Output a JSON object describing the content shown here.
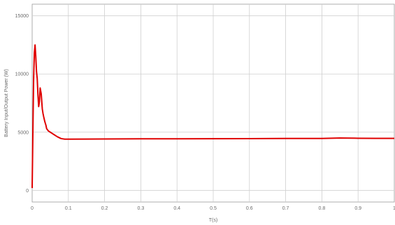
{
  "chart_data": {
    "type": "line",
    "title": "",
    "xlabel": "T(s)",
    "ylabel": "Battery Input/Output Power (W)",
    "xlim": [
      0,
      1
    ],
    "ylim": [
      -1000,
      16000
    ],
    "x_ticks": [
      0,
      0.1,
      0.2,
      0.3,
      0.4,
      0.5,
      0.6,
      0.7,
      0.8,
      0.9,
      1
    ],
    "x_tick_labels": [
      "0",
      "0.1",
      "0.2",
      "0.3",
      "0.4",
      "0.5",
      "0.6",
      "0.7",
      "0.8",
      "0.9",
      "1"
    ],
    "y_ticks": [
      0,
      5000,
      10000,
      15000
    ],
    "y_tick_labels": [
      "0",
      "5000",
      "10000",
      "15000"
    ],
    "grid": true,
    "series": [
      {
        "color": "#e00000",
        "x": [
          0,
          0.002,
          0.004,
          0.006,
          0.008,
          0.01,
          0.012,
          0.014,
          0.016,
          0.018,
          0.02,
          0.022,
          0.025,
          0.028,
          0.03,
          0.032,
          0.035,
          0.038,
          0.04,
          0.045,
          0.05,
          0.055,
          0.06,
          0.065,
          0.07,
          0.08,
          0.09,
          0.1,
          0.2,
          0.3,
          0.4,
          0.5,
          0.6,
          0.7,
          0.8,
          0.85,
          0.9,
          0.95,
          1.0
        ],
        "y": [
          200,
          5000,
          9500,
          11800,
          12500,
          11500,
          10200,
          9600,
          8200,
          7200,
          7600,
          8800,
          8300,
          7000,
          6600,
          6300,
          5900,
          5600,
          5300,
          5100,
          5000,
          4900,
          4800,
          4700,
          4600,
          4450,
          4400,
          4400,
          4420,
          4430,
          4430,
          4440,
          4450,
          4460,
          4460,
          4500,
          4480,
          4470,
          4470
        ]
      }
    ]
  }
}
